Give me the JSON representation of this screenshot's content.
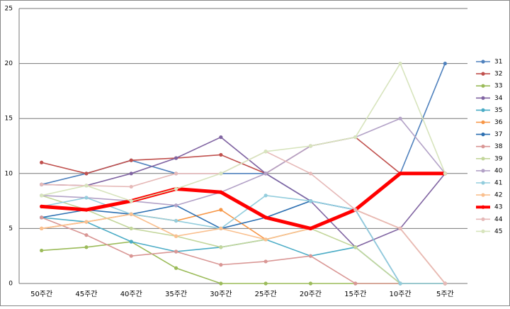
{
  "chart_data": {
    "type": "line",
    "categories": [
      "50주간",
      "45주간",
      "40주간",
      "35주간",
      "30주간",
      "25주간",
      "20주간",
      "15주간",
      "10주간",
      "5주간"
    ],
    "ylim": [
      0,
      25
    ],
    "yticks": [
      0,
      5,
      10,
      15,
      20,
      25
    ],
    "grid": true,
    "legend": "right",
    "series": [
      {
        "name": "31",
        "color": "#4f81bd",
        "values": [
          9,
          10,
          11.2,
          10,
          10,
          10,
          7.5,
          6.7,
          10,
          20
        ]
      },
      {
        "name": "32",
        "color": "#c0504d",
        "values": [
          11,
          10,
          11.2,
          11.4,
          11.7,
          10,
          12.5,
          13.3,
          10,
          10
        ]
      },
      {
        "name": "33",
        "color": "#9bbb59",
        "values": [
          3,
          3.3,
          3.8,
          1.4,
          0,
          0,
          0,
          0,
          0,
          0
        ]
      },
      {
        "name": "34",
        "color": "#8064a2",
        "values": [
          9,
          8.9,
          10,
          11.4,
          13.3,
          10,
          7.5,
          3.3,
          5,
          10
        ]
      },
      {
        "name": "35",
        "color": "#4bacc6",
        "values": [
          6,
          5.6,
          3.8,
          2.9,
          3.3,
          4,
          2.5,
          3.3,
          0,
          0
        ]
      },
      {
        "name": "36",
        "color": "#f79646",
        "values": [
          5,
          5.6,
          6.3,
          5.7,
          6.7,
          4,
          5,
          6.7,
          5,
          0
        ]
      },
      {
        "name": "37",
        "color": "#2c6fb1",
        "values": [
          6,
          6.7,
          6.3,
          7.1,
          5,
          6,
          7.5,
          6.7,
          0,
          0
        ]
      },
      {
        "name": "38",
        "color": "#d99694",
        "values": [
          6,
          4.4,
          2.5,
          2.9,
          1.7,
          2,
          2.5,
          0,
          0,
          0
        ]
      },
      {
        "name": "39",
        "color": "#c3d69b",
        "values": [
          8,
          6.7,
          5,
          4.3,
          3.3,
          4,
          5,
          3.3,
          0,
          0
        ]
      },
      {
        "name": "40",
        "color": "#b3a2c7",
        "values": [
          8,
          7.8,
          7.5,
          7.1,
          8.3,
          10,
          12.5,
          13.3,
          15,
          10
        ]
      },
      {
        "name": "41",
        "color": "#93cddd",
        "values": [
          7,
          7.8,
          6.3,
          5.7,
          5,
          8,
          7.5,
          6.7,
          0,
          0
        ]
      },
      {
        "name": "42",
        "color": "#fac08f",
        "values": [
          5,
          5.6,
          6.3,
          4.3,
          5,
          4,
          5,
          6.7,
          5,
          0
        ]
      },
      {
        "name": "43",
        "color": "#ff0000",
        "values": [
          7,
          6.7,
          7.5,
          8.6,
          8.3,
          6,
          5,
          6.7,
          10,
          10
        ]
      },
      {
        "name": "44",
        "color": "#e6b9b8",
        "values": [
          9,
          8.9,
          8.8,
          10,
          10,
          12,
          10,
          6.7,
          5,
          0
        ]
      },
      {
        "name": "45",
        "color": "#d7e4bd",
        "values": [
          8,
          8.9,
          7.5,
          8.6,
          10,
          12,
          12.5,
          13.3,
          20,
          10
        ]
      }
    ]
  }
}
